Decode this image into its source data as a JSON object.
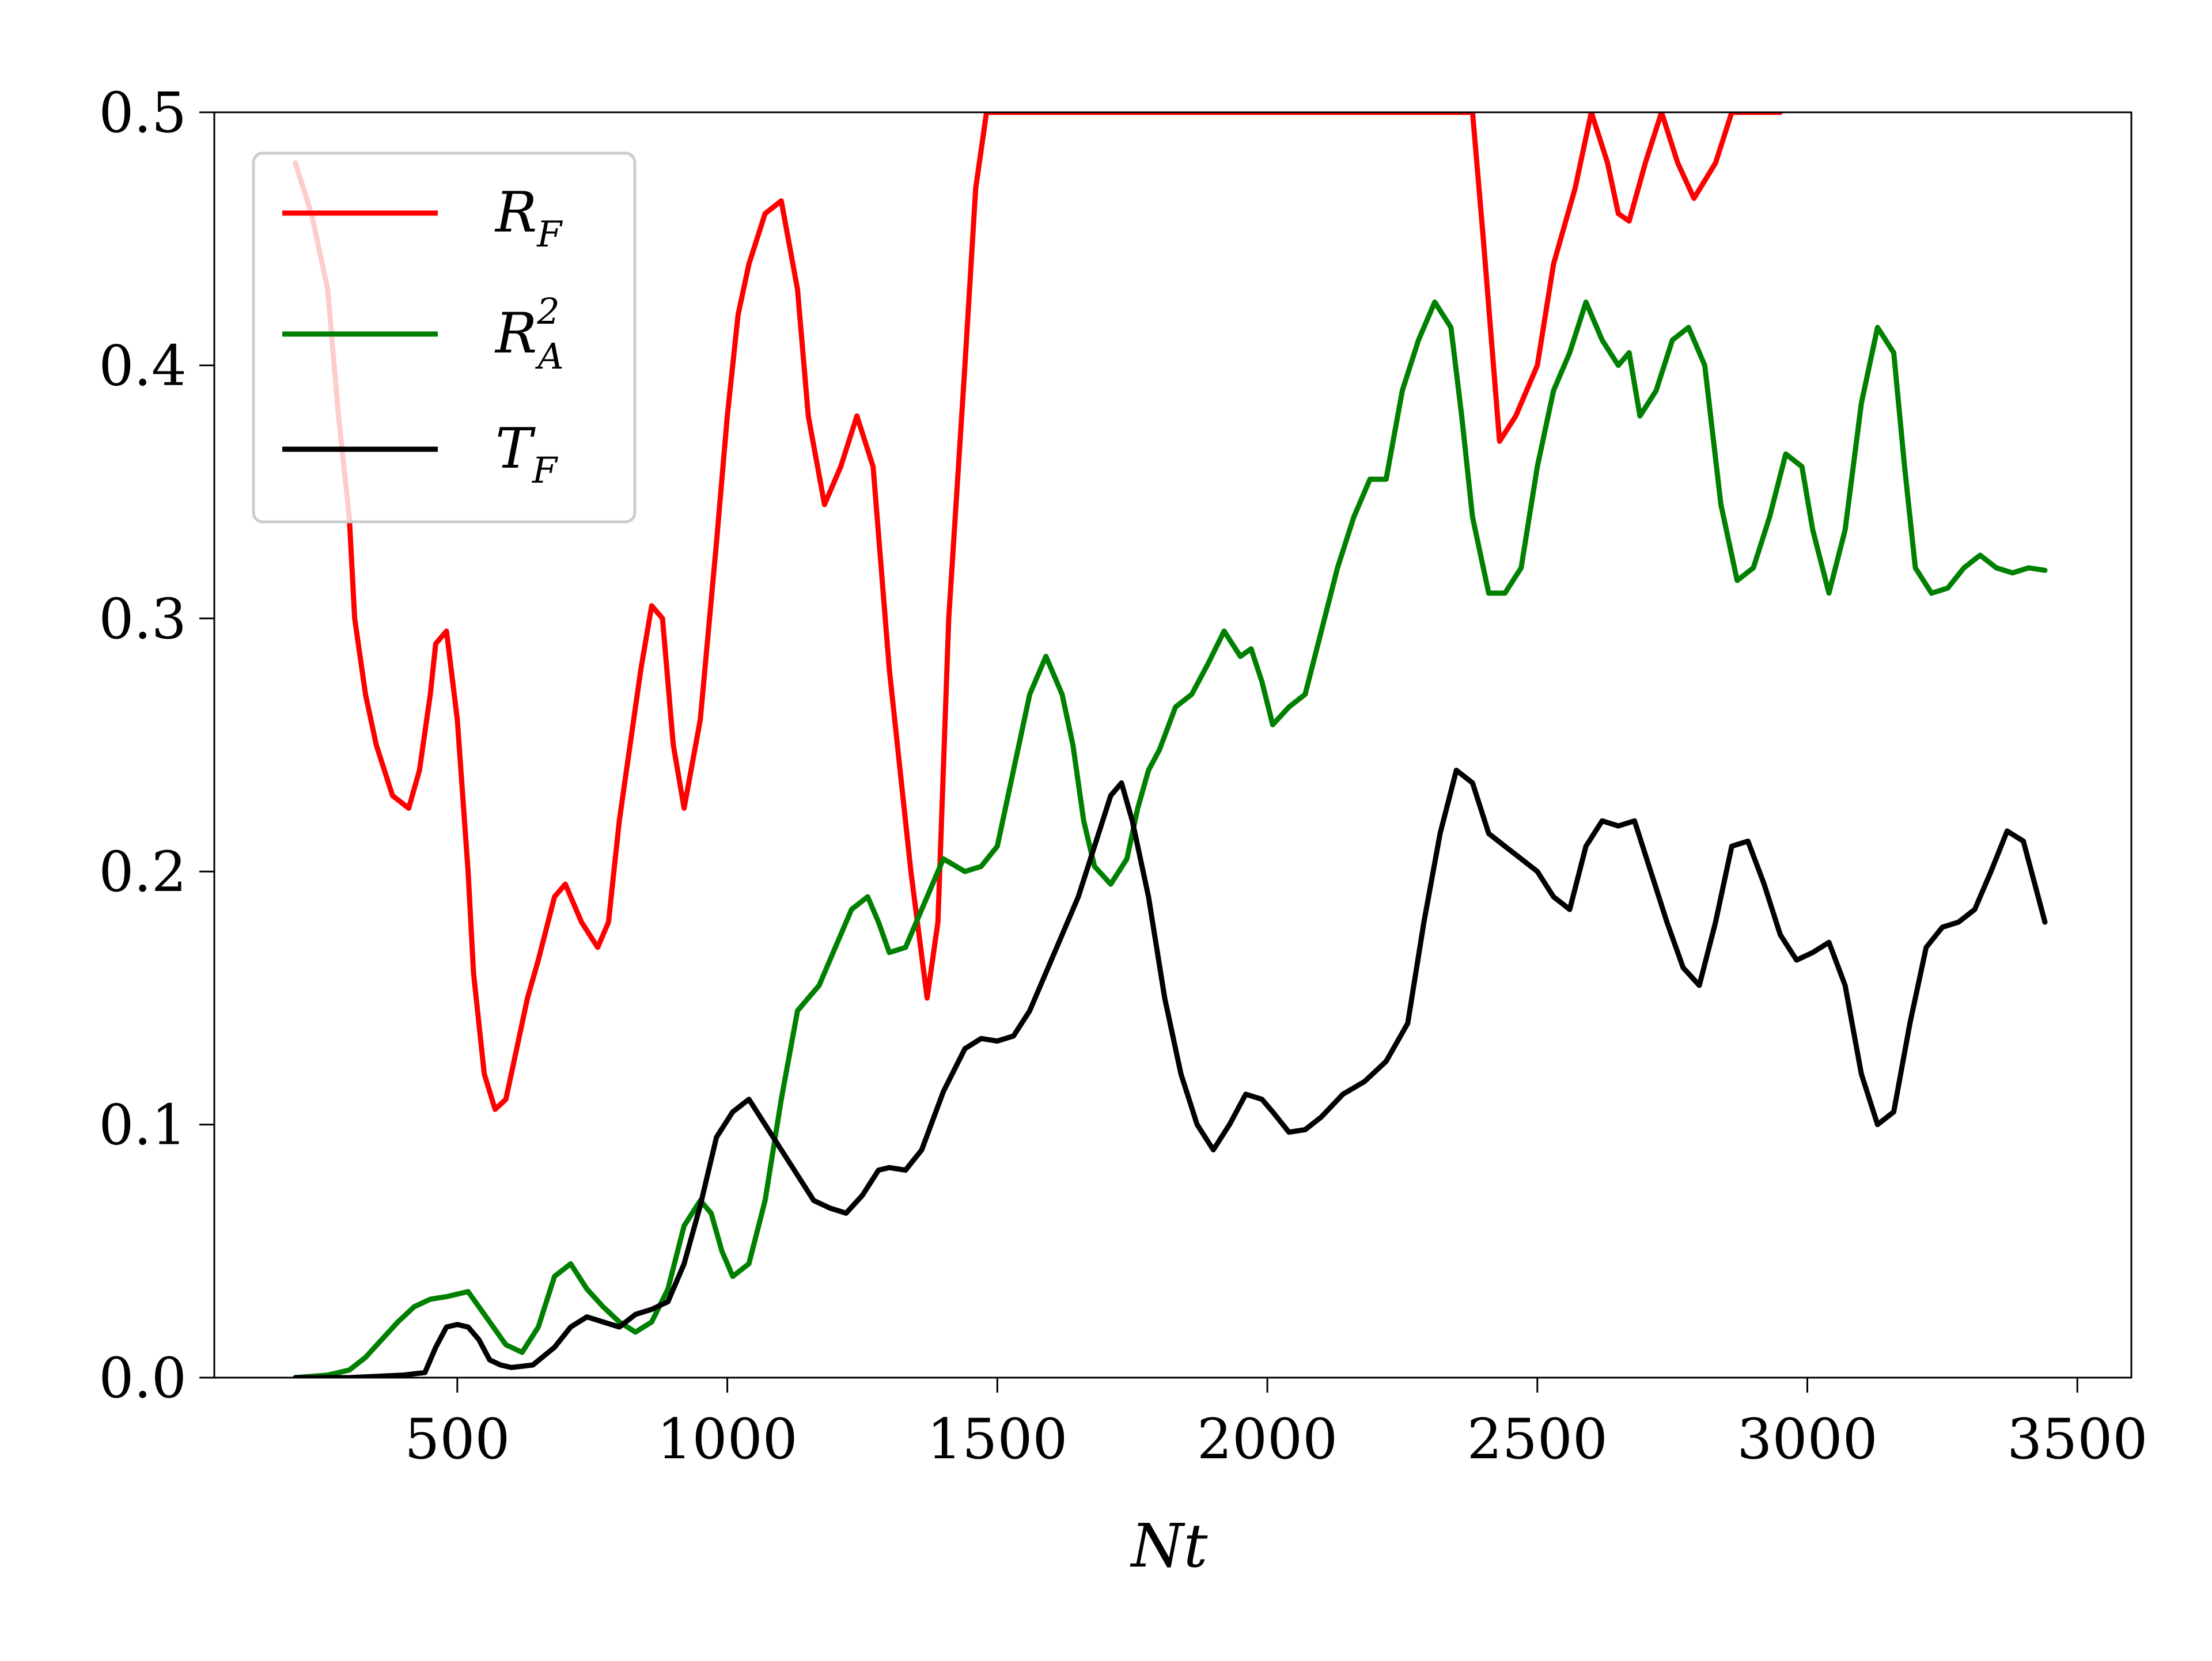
{
  "chart_data": {
    "type": "line",
    "xlabel": "Nt",
    "xlim": [
      50,
      3600
    ],
    "ylim": [
      0,
      0.5
    ],
    "xticks": [
      500,
      1000,
      1500,
      2000,
      2500,
      3000,
      3500
    ],
    "xtick_labels": [
      "500",
      "1000",
      "1500",
      "2000",
      "2500",
      "3000",
      "3500"
    ],
    "yticks": [
      0,
      0.1,
      0.2,
      0.3,
      0.4,
      0.5
    ],
    "ytick_labels": [
      "0.0",
      "0.1",
      "0.2",
      "0.3",
      "0.4",
      "0.5"
    ],
    "grid": false,
    "legend": {
      "placement": "top-left"
    },
    "series": [
      {
        "name": "R_F",
        "symbol": "R",
        "subscript": "F",
        "superscript": "",
        "color": "#ff0000",
        "x": [
          200,
          230,
          260,
          280,
          300,
          310,
          330,
          350,
          380,
          410,
          430,
          450,
          460,
          480,
          500,
          520,
          530,
          550,
          570,
          590,
          610,
          630,
          650,
          680,
          700,
          730,
          760,
          780,
          800,
          820,
          840,
          860,
          880,
          900,
          920,
          950,
          980,
          1000,
          1020,
          1040,
          1070,
          1100,
          1130,
          1150,
          1180,
          1210,
          1240,
          1270,
          1300,
          1340,
          1370,
          1390,
          1410,
          1440,
          1460,
          1480,
          1500,
          1520,
          1540,
          1560,
          1580,
          1600,
          1620,
          1640,
          1660,
          1680,
          1700,
          1720,
          1740,
          1760,
          1780,
          1800,
          2380,
          2400,
          2430,
          2460,
          2500,
          2530,
          2570,
          2600,
          2630,
          2650,
          2670,
          2700,
          2730,
          2760,
          2790,
          2830,
          2860,
          2890,
          2920,
          2950
        ],
        "y": [
          0.48,
          0.46,
          0.43,
          0.38,
          0.34,
          0.3,
          0.27,
          0.25,
          0.23,
          0.225,
          0.24,
          0.27,
          0.29,
          0.295,
          0.26,
          0.2,
          0.16,
          0.12,
          0.106,
          0.11,
          0.13,
          0.15,
          0.165,
          0.19,
          0.195,
          0.18,
          0.17,
          0.18,
          0.22,
          0.25,
          0.28,
          0.305,
          0.3,
          0.25,
          0.225,
          0.26,
          0.33,
          0.38,
          0.42,
          0.44,
          0.46,
          0.465,
          0.43,
          0.38,
          0.345,
          0.36,
          0.38,
          0.36,
          0.28,
          0.2,
          0.15,
          0.18,
          0.3,
          0.4,
          0.47,
          0.5,
          0.5,
          0.5,
          0.5,
          0.5,
          0.5,
          0.5,
          0.5,
          0.5,
          0.5,
          0.5,
          0.5,
          0.5,
          0.5,
          0.5,
          0.5,
          0.5,
          0.5,
          0.45,
          0.37,
          0.38,
          0.4,
          0.44,
          0.47,
          0.5,
          0.48,
          0.46,
          0.457,
          0.48,
          0.5,
          0.48,
          0.466,
          0.48,
          0.5,
          0.5,
          0.5,
          0.5
        ]
      },
      {
        "name": "R_A^2",
        "symbol": "R",
        "subscript": "A",
        "superscript": "2",
        "color": "#008000",
        "x": [
          200,
          260,
          300,
          330,
          360,
          390,
          420,
          450,
          480,
          500,
          520,
          540,
          560,
          590,
          620,
          650,
          680,
          710,
          740,
          770,
          800,
          830,
          860,
          890,
          920,
          950,
          970,
          990,
          1010,
          1040,
          1070,
          1100,
          1130,
          1150,
          1170,
          1200,
          1230,
          1260,
          1280,
          1300,
          1330,
          1360,
          1400,
          1440,
          1470,
          1500,
          1530,
          1560,
          1590,
          1600,
          1620,
          1640,
          1660,
          1680,
          1710,
          1740,
          1760,
          1780,
          1800,
          1830,
          1860,
          1890,
          1920,
          1950,
          1970,
          1990,
          2010,
          2040,
          2070,
          2100,
          2130,
          2160,
          2190,
          2220,
          2250,
          2280,
          2310,
          2340,
          2360,
          2380,
          2410,
          2440,
          2470,
          2500,
          2530,
          2560,
          2590,
          2620,
          2650,
          2670,
          2690,
          2720,
          2750,
          2780,
          2810,
          2840,
          2870,
          2900,
          2930,
          2960,
          2990,
          3010,
          3040,
          3070,
          3100,
          3130,
          3160,
          3180,
          3200,
          3230,
          3260,
          3290,
          3320,
          3350,
          3380,
          3410,
          3440
        ],
        "y": [
          0,
          0.001,
          0.003,
          0.008,
          0.015,
          0.022,
          0.028,
          0.031,
          0.032,
          0.033,
          0.034,
          0.028,
          0.022,
          0.013,
          0.01,
          0.02,
          0.04,
          0.045,
          0.035,
          0.028,
          0.022,
          0.018,
          0.022,
          0.035,
          0.06,
          0.07,
          0.065,
          0.05,
          0.04,
          0.045,
          0.07,
          0.11,
          0.145,
          0.15,
          0.155,
          0.17,
          0.185,
          0.19,
          0.18,
          0.168,
          0.17,
          0.185,
          0.205,
          0.2,
          0.202,
          0.21,
          0.24,
          0.27,
          0.285,
          0.28,
          0.27,
          0.25,
          0.22,
          0.202,
          0.195,
          0.205,
          0.225,
          0.24,
          0.248,
          0.265,
          0.27,
          0.282,
          0.295,
          0.285,
          0.288,
          0.275,
          0.258,
          0.265,
          0.27,
          0.295,
          0.32,
          0.34,
          0.355,
          0.355,
          0.39,
          0.41,
          0.425,
          0.415,
          0.38,
          0.34,
          0.31,
          0.31,
          0.32,
          0.36,
          0.39,
          0.405,
          0.425,
          0.41,
          0.4,
          0.405,
          0.38,
          0.39,
          0.41,
          0.415,
          0.4,
          0.345,
          0.315,
          0.32,
          0.34,
          0.365,
          0.36,
          0.335,
          0.31,
          0.335,
          0.385,
          0.415,
          0.405,
          0.36,
          0.32,
          0.31,
          0.312,
          0.32,
          0.325,
          0.32,
          0.318,
          0.32,
          0.319
        ]
      },
      {
        "name": "T_F",
        "symbol": "T",
        "subscript": "F",
        "superscript": "",
        "color": "#000000",
        "x": [
          200,
          300,
          400,
          440,
          460,
          480,
          500,
          520,
          540,
          560,
          580,
          600,
          640,
          680,
          710,
          740,
          770,
          800,
          830,
          860,
          890,
          920,
          950,
          980,
          1010,
          1040,
          1070,
          1100,
          1130,
          1160,
          1190,
          1220,
          1250,
          1280,
          1300,
          1330,
          1360,
          1400,
          1440,
          1470,
          1500,
          1530,
          1560,
          1590,
          1620,
          1650,
          1680,
          1710,
          1730,
          1750,
          1780,
          1810,
          1840,
          1870,
          1900,
          1930,
          1960,
          1990,
          2010,
          2040,
          2070,
          2100,
          2140,
          2180,
          2220,
          2260,
          2290,
          2320,
          2350,
          2380,
          2410,
          2440,
          2470,
          2500,
          2530,
          2560,
          2590,
          2620,
          2650,
          2680,
          2710,
          2740,
          2770,
          2800,
          2830,
          2860,
          2890,
          2920,
          2950,
          2980,
          3010,
          3040,
          3070,
          3100,
          3130,
          3160,
          3190,
          3220,
          3250,
          3280,
          3310,
          3340,
          3370,
          3400,
          3440
        ],
        "y": [
          0,
          0,
          0.001,
          0.002,
          0.012,
          0.02,
          0.021,
          0.02,
          0.015,
          0.007,
          0.005,
          0.004,
          0.005,
          0.012,
          0.02,
          0.024,
          0.022,
          0.02,
          0.025,
          0.027,
          0.03,
          0.045,
          0.068,
          0.095,
          0.105,
          0.11,
          0.1,
          0.09,
          0.08,
          0.07,
          0.067,
          0.065,
          0.072,
          0.082,
          0.083,
          0.082,
          0.09,
          0.113,
          0.13,
          0.134,
          0.133,
          0.135,
          0.145,
          0.16,
          0.175,
          0.19,
          0.21,
          0.23,
          0.235,
          0.22,
          0.19,
          0.15,
          0.12,
          0.1,
          0.09,
          0.1,
          0.112,
          0.11,
          0.105,
          0.097,
          0.098,
          0.103,
          0.112,
          0.117,
          0.125,
          0.14,
          0.18,
          0.215,
          0.24,
          0.235,
          0.215,
          0.21,
          0.205,
          0.2,
          0.19,
          0.185,
          0.21,
          0.22,
          0.218,
          0.22,
          0.2,
          0.18,
          0.162,
          0.155,
          0.18,
          0.21,
          0.212,
          0.195,
          0.175,
          0.165,
          0.168,
          0.172,
          0.155,
          0.12,
          0.1,
          0.105,
          0.14,
          0.17,
          0.178,
          0.18,
          0.185,
          0.2,
          0.216,
          0.212,
          0.18
        ]
      }
    ]
  }
}
